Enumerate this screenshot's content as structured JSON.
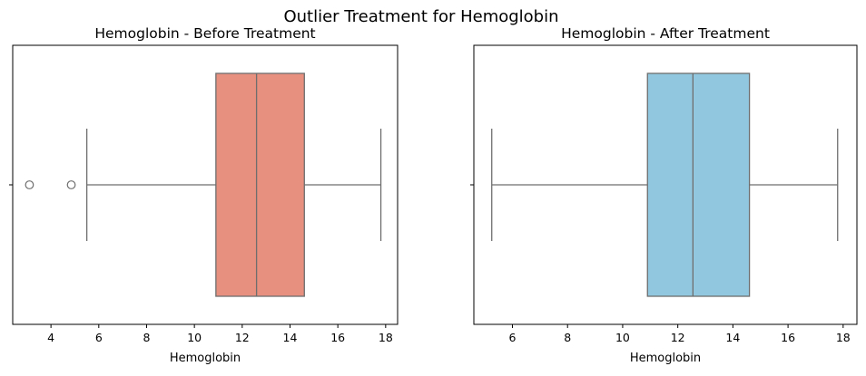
{
  "figure": {
    "title": "Outlier Treatment for Hemoglobin"
  },
  "chart_data": [
    {
      "type": "box",
      "title": "Hemoglobin - Before Treatment",
      "xlabel": "Hemoglobin",
      "ylabel": "",
      "xlim": [
        2.4,
        18.5
      ],
      "xticks": [
        4,
        6,
        8,
        10,
        12,
        14,
        16,
        18
      ],
      "box_color": "#e8907f",
      "stats": {
        "whisker_low": 5.5,
        "q1": 10.9,
        "median": 12.6,
        "q3": 14.6,
        "whisker_high": 17.8
      },
      "outliers": [
        3.1,
        4.85
      ]
    },
    {
      "type": "box",
      "title": "Hemoglobin - After Treatment",
      "xlabel": "Hemoglobin",
      "ylabel": "",
      "xlim": [
        4.6,
        18.5
      ],
      "xticks": [
        6,
        8,
        10,
        12,
        14,
        16,
        18
      ],
      "box_color": "#92c8df",
      "stats": {
        "whisker_low": 5.25,
        "q1": 10.9,
        "median": 12.55,
        "q3": 14.6,
        "whisker_high": 17.8
      },
      "outliers": []
    }
  ]
}
